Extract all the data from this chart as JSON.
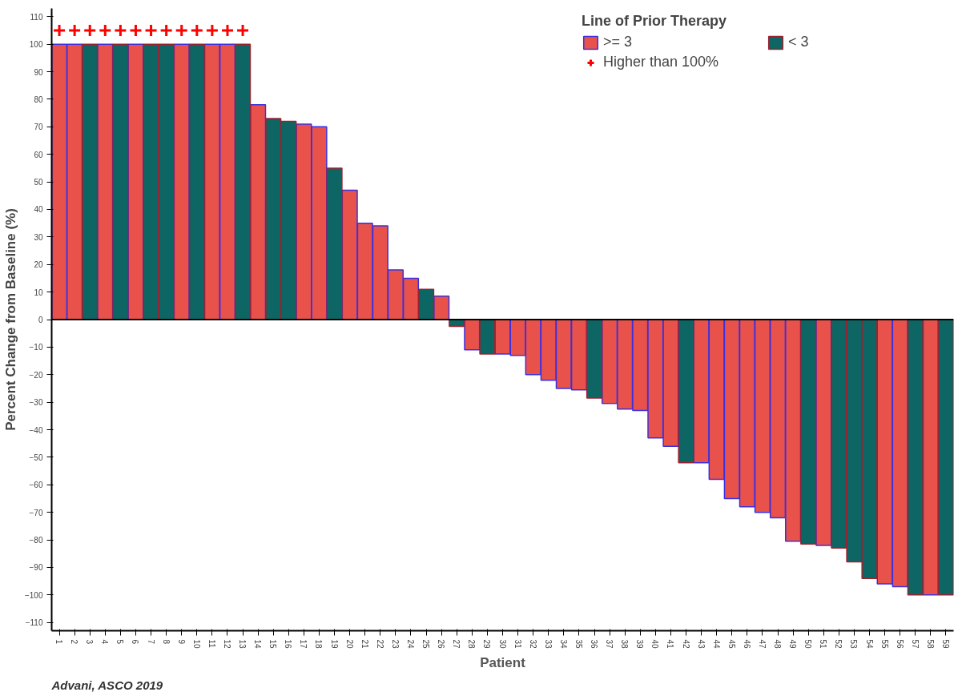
{
  "chart_data": {
    "type": "bar",
    "categories": [
      "1",
      "2",
      "3",
      "4",
      "5",
      "6",
      "7",
      "8",
      "9",
      "10",
      "11",
      "12",
      "13",
      "14",
      "15",
      "16",
      "17",
      "18",
      "19",
      "20",
      "21",
      "22",
      "23",
      "24",
      "25",
      "26",
      "27",
      "28",
      "29",
      "30",
      "31",
      "32",
      "33",
      "34",
      "35",
      "36",
      "37",
      "38",
      "39",
      "40",
      "41",
      "42",
      "43",
      "44",
      "45",
      "46",
      "47",
      "48",
      "49",
      "50",
      "51",
      "52",
      "53",
      "54",
      "55",
      "56",
      "57",
      "58",
      "59"
    ],
    "series": [
      {
        "name": ">= 3",
        "color": "#e8524a",
        "values": [
          100,
          100,
          null,
          100,
          null,
          100,
          null,
          null,
          100,
          null,
          100,
          100,
          null,
          78,
          null,
          null,
          71,
          70,
          null,
          47,
          35,
          34,
          18,
          15,
          null,
          8.5,
          null,
          -11,
          null,
          -12.5,
          -13,
          -20,
          -22,
          -25,
          -25.5,
          null,
          -30.5,
          -32.5,
          -33,
          -43,
          -46,
          null,
          -52,
          -58,
          -65,
          -68,
          -70,
          -72,
          -80.5,
          null,
          -82,
          null,
          null,
          null,
          -96,
          -97,
          null,
          -100,
          null
        ]
      },
      {
        "name": "< 3",
        "color": "#0d6663",
        "values": [
          null,
          null,
          100,
          null,
          100,
          null,
          100,
          100,
          null,
          100,
          null,
          null,
          100,
          null,
          73,
          72,
          null,
          null,
          55,
          null,
          null,
          null,
          null,
          null,
          11,
          null,
          -2.5,
          null,
          -12.5,
          null,
          null,
          null,
          null,
          null,
          null,
          -28.5,
          null,
          null,
          null,
          null,
          null,
          -52,
          null,
          null,
          null,
          null,
          null,
          null,
          null,
          -81.5,
          null,
          -83,
          -88,
          -94,
          null,
          null,
          -100,
          null,
          -100
        ]
      },
      {
        "name": "Higher than 100%",
        "type": "scatter",
        "marker": "cross",
        "color": "#ff0000",
        "x": [
          "1",
          "2",
          "3",
          "4",
          "5",
          "6",
          "7",
          "8",
          "9",
          "10",
          "11",
          "12",
          "13"
        ],
        "values": [
          105,
          105,
          105,
          105,
          105,
          105,
          105,
          105,
          105,
          105,
          105,
          105,
          105
        ]
      }
    ],
    "xlabel": "Patient",
    "ylabel": "Percent Change from Baseline (%)",
    "legend_title": "Line of Prior Therapy",
    "legend": "top right",
    "ylim": [
      -113,
      113
    ],
    "yticks": [
      -110,
      -100,
      -90,
      -80,
      -70,
      -60,
      -50,
      -40,
      -30,
      -20,
      -10,
      0,
      10,
      20,
      30,
      40,
      50,
      60,
      70,
      80,
      90,
      100,
      110
    ],
    "ref_lines": [
      {
        "axis": "y",
        "value": 0,
        "color": "#000000"
      }
    ],
    "grid": false,
    "annotations": [
      "Advani, ASCO 2019"
    ]
  }
}
